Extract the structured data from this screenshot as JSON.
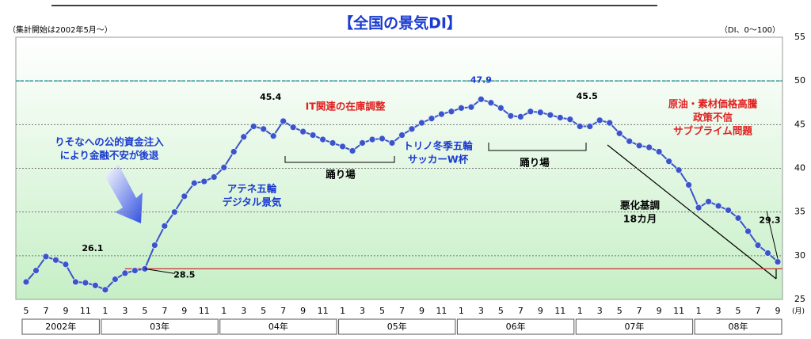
{
  "chart_data": {
    "type": "line",
    "title": "【全国の景気DI】",
    "subtitle": "（集計開始は2002年5月～）",
    "unit_note": "（DI、0～100）",
    "x_unit": "(月)",
    "categories": [
      "5",
      null,
      "7",
      null,
      "9",
      null,
      "11",
      null,
      "1",
      null,
      "3",
      null,
      "5",
      null,
      "7",
      null,
      "9",
      null,
      "11",
      null,
      "1",
      null,
      "3",
      null,
      "5",
      null,
      "7",
      null,
      "9",
      null,
      "11",
      null,
      "1",
      null,
      "3",
      null,
      "5",
      null,
      "7",
      null,
      "9",
      null,
      "11",
      null,
      "1",
      null,
      "3",
      null,
      "5",
      null,
      "7",
      null,
      "9",
      null,
      "11",
      null,
      "1",
      null,
      "3",
      null,
      "5",
      null,
      "7",
      null,
      "9",
      null,
      "11",
      null,
      "1",
      null,
      "3",
      null,
      "5",
      null,
      "7",
      null,
      "9"
    ],
    "year_labels": [
      "2002年",
      "03年",
      "04年",
      "05年",
      "06年",
      "07年",
      "08年"
    ],
    "values": [
      27.0,
      28.3,
      29.9,
      29.5,
      29.0,
      27.0,
      26.9,
      26.6,
      26.1,
      27.3,
      28.0,
      28.3,
      28.5,
      31.2,
      33.4,
      35.0,
      36.8,
      38.3,
      38.5,
      39.0,
      40.1,
      41.9,
      43.6,
      44.8,
      44.5,
      43.7,
      45.4,
      44.7,
      44.2,
      43.8,
      43.3,
      42.9,
      42.5,
      42.0,
      42.9,
      43.3,
      43.4,
      42.9,
      43.8,
      44.5,
      45.2,
      45.7,
      46.2,
      46.5,
      46.9,
      47.0,
      47.9,
      47.5,
      46.9,
      46.0,
      45.9,
      46.5,
      46.4,
      46.1,
      45.8,
      45.6,
      44.8,
      44.8,
      45.5,
      45.2,
      44.0,
      43.1,
      42.6,
      42.4,
      41.9,
      40.8,
      39.8,
      38.1,
      35.5,
      36.2,
      35.7,
      35.2,
      34.3,
      32.8,
      31.2,
      30.3,
      29.3
    ],
    "color": "#3a55c8",
    "ylim": [
      25,
      55
    ],
    "yticks": [
      25,
      30,
      35,
      40,
      45,
      50,
      55
    ],
    "grid": true,
    "hlines": [
      {
        "value": 50,
        "color": "#2a9a9a"
      },
      {
        "value": 28.5,
        "color": "#d03030"
      }
    ],
    "annotations": [
      {
        "lines": [
          "りそなへの公的資金注入",
          "により金融不安が後退"
        ],
        "color": "#1a3ad0"
      },
      {
        "lines": [
          "アテネ五輪",
          "デジタル景気"
        ],
        "color": "#1a3ad0"
      },
      {
        "lines": [
          "IT関連の在庫調整"
        ],
        "color": "#e02020"
      },
      {
        "lines": [
          "踊り場"
        ],
        "color": "#000000"
      },
      {
        "lines": [
          "トリノ冬季五輪",
          "サッカーW杯"
        ],
        "color": "#1a3ad0"
      },
      {
        "lines": [
          "踊り場"
        ],
        "color": "#000000"
      },
      {
        "lines": [
          "悪化基調",
          "18カ月"
        ],
        "color": "#000000"
      },
      {
        "lines": [
          "原油・素材価格高騰",
          "政策不信",
          "サブプライム問題"
        ],
        "color": "#e02020"
      }
    ]
  }
}
